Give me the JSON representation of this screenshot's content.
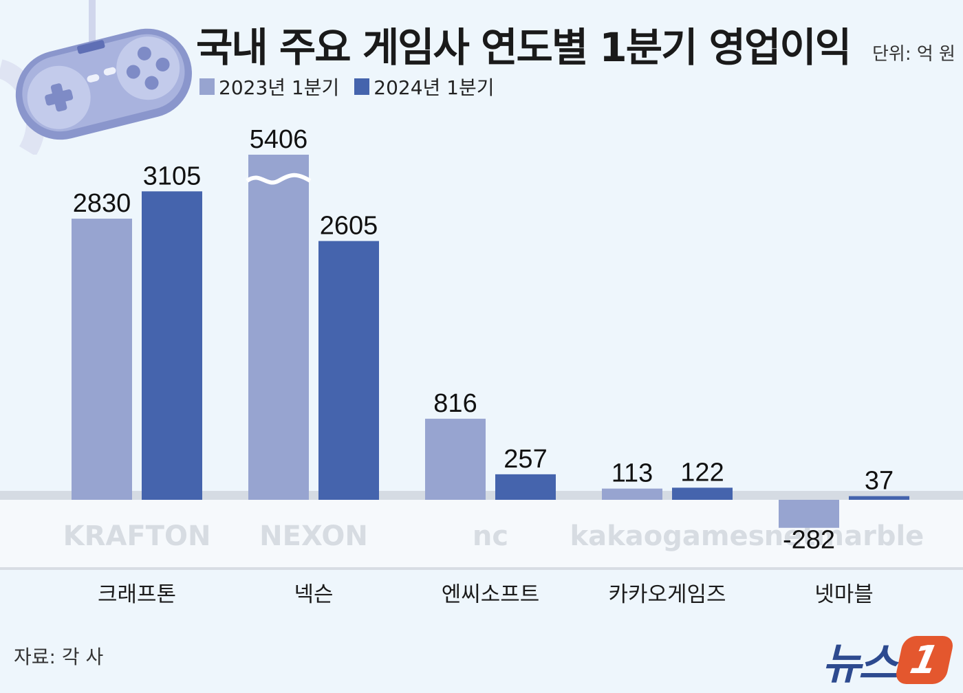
{
  "title": "국내 주요 게임사 연도별 1분기 영업이익",
  "unit": "단위: 억 원",
  "source": "자료: 각 사",
  "news_logo": {
    "text": "뉴스",
    "badge": "1"
  },
  "colors": {
    "series_2023": "#97a4d0",
    "series_2024": "#4564ad",
    "background": "#eef6fc"
  },
  "company_logos": [
    "KRAFTON",
    "NEXON",
    "nc",
    "kakaogames",
    "netmarble"
  ],
  "chart_data": {
    "type": "bar",
    "title": "국내 주요 게임사 연도별 1분기 영업이익",
    "xlabel": "",
    "ylabel": "",
    "unit": "단위: 억 원",
    "categories": [
      "크래프톤",
      "넥슨",
      "엔씨소프트",
      "카카오게임즈",
      "넷마블"
    ],
    "series": [
      {
        "name": "2023년 1분기",
        "values": [
          2830,
          5406,
          816,
          113,
          -282
        ]
      },
      {
        "name": "2024년 1분기",
        "values": [
          3105,
          2605,
          257,
          122,
          37
        ]
      }
    ],
    "labels": [
      [
        "2830",
        "5406",
        "816",
        "113",
        "-282"
      ],
      [
        "3105",
        "2605",
        "257",
        "122",
        "37"
      ]
    ],
    "broken_axis_bars": [
      {
        "series": 0,
        "category": 1
      }
    ],
    "grid": false,
    "legend_position": "top-left"
  }
}
